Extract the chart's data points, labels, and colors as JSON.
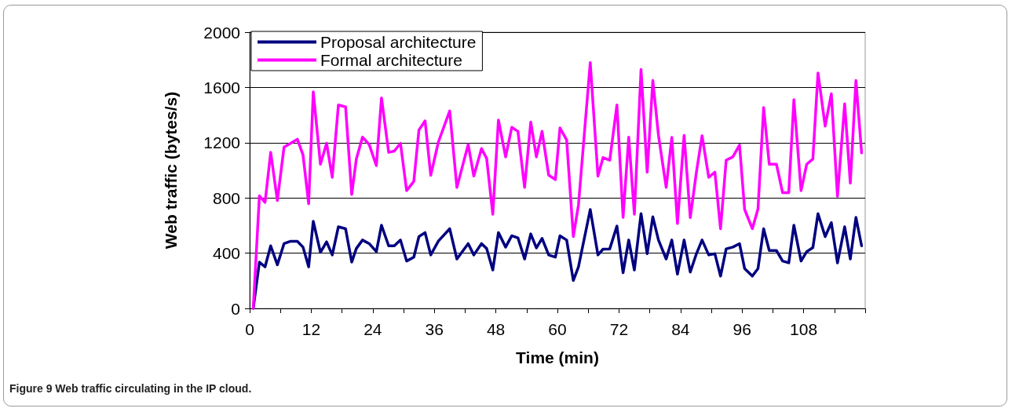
{
  "chart_data": {
    "type": "line",
    "xlabel": "Time (min)",
    "ylabel": "Web traffic (bytes/s)",
    "annotations": [
      "Figure 9 Web traffic circulating in the IP cloud."
    ],
    "x": [
      0.7,
      1.9,
      3.0,
      4.1,
      5.4,
      6.7,
      8.0,
      9.3,
      10.4,
      11.5,
      12.4,
      13.8,
      15.0,
      16.1,
      17.3,
      18.7,
      19.9,
      20.8,
      22.0,
      23.3,
      24.7,
      25.7,
      27.1,
      28.2,
      29.4,
      30.6,
      32.0,
      33.0,
      34.2,
      35.3,
      36.8,
      39.0,
      40.4,
      42.6,
      43.7,
      45.2,
      46.2,
      47.4,
      48.5,
      49.9,
      51.1,
      52.3,
      53.6,
      54.8,
      55.9,
      57.0,
      58.3,
      59.6,
      60.5,
      61.8,
      63.1,
      64.1,
      66.4,
      67.9,
      68.9,
      70.2,
      71.6,
      72.8,
      73.9,
      75.0,
      76.3,
      77.5,
      78.6,
      79.7,
      81.2,
      82.3,
      83.4,
      84.7,
      85.9,
      87.1,
      88.2,
      89.5,
      90.7,
      91.8,
      92.9,
      94.2,
      95.5,
      96.5,
      98.0,
      99.1,
      100.2,
      101.3,
      102.7,
      103.9,
      105.1,
      106.1,
      107.5,
      108.6,
      109.8,
      110.8,
      112.2,
      113.4,
      114.6,
      116.0,
      117.1,
      118.2,
      119.3
    ],
    "series": [
      {
        "name": "Proposal architecture",
        "color": "#000080",
        "values": [
          0,
          335,
          301,
          453,
          316,
          469,
          486,
          486,
          444,
          301,
          631,
          406,
          482,
          387,
          591,
          577,
          335,
          434,
          495,
          469,
          411,
          602,
          453,
          453,
          495,
          343,
          371,
          520,
          549,
          387,
          488,
          577,
          358,
          469,
          387,
          469,
          434,
          278,
          549,
          444,
          526,
          511,
          358,
          539,
          438,
          507,
          387,
          371,
          526,
          495,
          202,
          301,
          716,
          387,
          429,
          431,
          596,
          259,
          495,
          278,
          686,
          396,
          663,
          495,
          358,
          495,
          248,
          495,
          263,
          396,
          495,
          387,
          396,
          234,
          431,
          444,
          469,
          288,
          234,
          288,
          577,
          419,
          419,
          343,
          330,
          602,
          343,
          411,
          440,
          686,
          520,
          621,
          330,
          591,
          358,
          659,
          453
        ]
      },
      {
        "name": "Formal architecture",
        "color": "#ff00ff",
        "values": [
          0,
          815,
          768,
          1130,
          781,
          1168,
          1196,
          1225,
          1111,
          758,
          1568,
          1044,
          1196,
          949,
          1473,
          1459,
          825,
          1082,
          1240,
          1187,
          1034,
          1524,
          1130,
          1139,
          1196,
          853,
          920,
          1292,
          1358,
          964,
          1206,
          1430,
          876,
          1187,
          958,
          1158,
          1086,
          682,
          1364,
          1097,
          1311,
          1282,
          876,
          1349,
          1097,
          1282,
          964,
          933,
          1307,
          1219,
          520,
          749,
          1780,
          958,
          1092,
          1073,
          1473,
          659,
          1240,
          682,
          1730,
          987,
          1650,
          1253,
          876,
          1238,
          615,
          1253,
          657,
          987,
          1250,
          949,
          987,
          577,
          1073,
          1097,
          1183,
          716,
          577,
          720,
          1454,
          1044,
          1044,
          838,
          838,
          1511,
          853,
          1044,
          1082,
          1705,
          1320,
          1554,
          812,
          1482,
          907,
          1650,
          1126
        ]
      }
    ],
    "xlim": [
      0,
      120
    ],
    "xticks": [
      0,
      {
        "value": 6,
        "label": null
      },
      12,
      {
        "value": 18,
        "label": null
      },
      24,
      {
        "value": 30,
        "label": null
      },
      36,
      {
        "value": 42,
        "label": null
      },
      48,
      {
        "value": 54,
        "label": null
      },
      60,
      {
        "value": 66,
        "label": null
      },
      72,
      {
        "value": 78,
        "label": null
      },
      84,
      {
        "value": 90,
        "label": null
      },
      96,
      {
        "value": 102,
        "label": null
      },
      108,
      {
        "value": 114,
        "label": null
      },
      {
        "value": 120,
        "label": null
      }
    ],
    "ylim": [
      0,
      2000
    ],
    "yticks": [
      0,
      400,
      800,
      1200,
      1600,
      2000
    ],
    "grid": "y",
    "legend": "top left",
    "marker": "none",
    "line_style": "solid"
  }
}
